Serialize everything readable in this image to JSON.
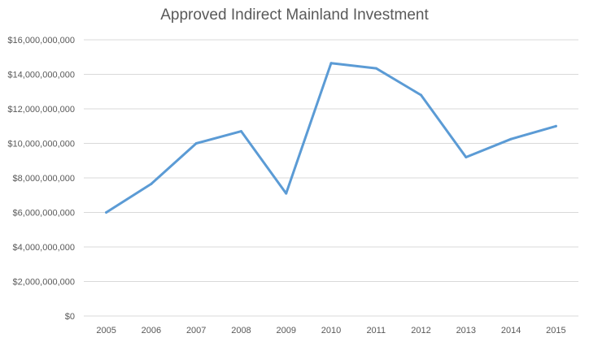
{
  "chart_data": {
    "type": "line",
    "title": "Approved Indirect Mainland Investment",
    "xlabel": "",
    "ylabel": "",
    "categories": [
      "2005",
      "2006",
      "2007",
      "2008",
      "2009",
      "2010",
      "2011",
      "2012",
      "2013",
      "2014",
      "2015"
    ],
    "series": [
      {
        "values": [
          6000000000,
          7650000000,
          10000000000,
          10700000000,
          7100000000,
          14650000000,
          14350000000,
          12800000000,
          9200000000,
          10250000000,
          11000000000
        ]
      }
    ],
    "ylim": [
      0,
      16000000000
    ],
    "yticks": [
      0,
      2000000000,
      4000000000,
      6000000000,
      8000000000,
      10000000000,
      12000000000,
      14000000000,
      16000000000
    ],
    "ytick_labels": [
      "$0",
      "$2,000,000,000",
      "$4,000,000,000",
      "$6,000,000,000",
      "$8,000,000,000",
      "$10,000,000,000",
      "$12,000,000,000",
      "$14,000,000,000",
      "$16,000,000,000"
    ],
    "grid": true,
    "legend": "none",
    "colors": {
      "line": "#5b9bd5",
      "grid": "#d9d9d9",
      "text": "#595959"
    }
  }
}
